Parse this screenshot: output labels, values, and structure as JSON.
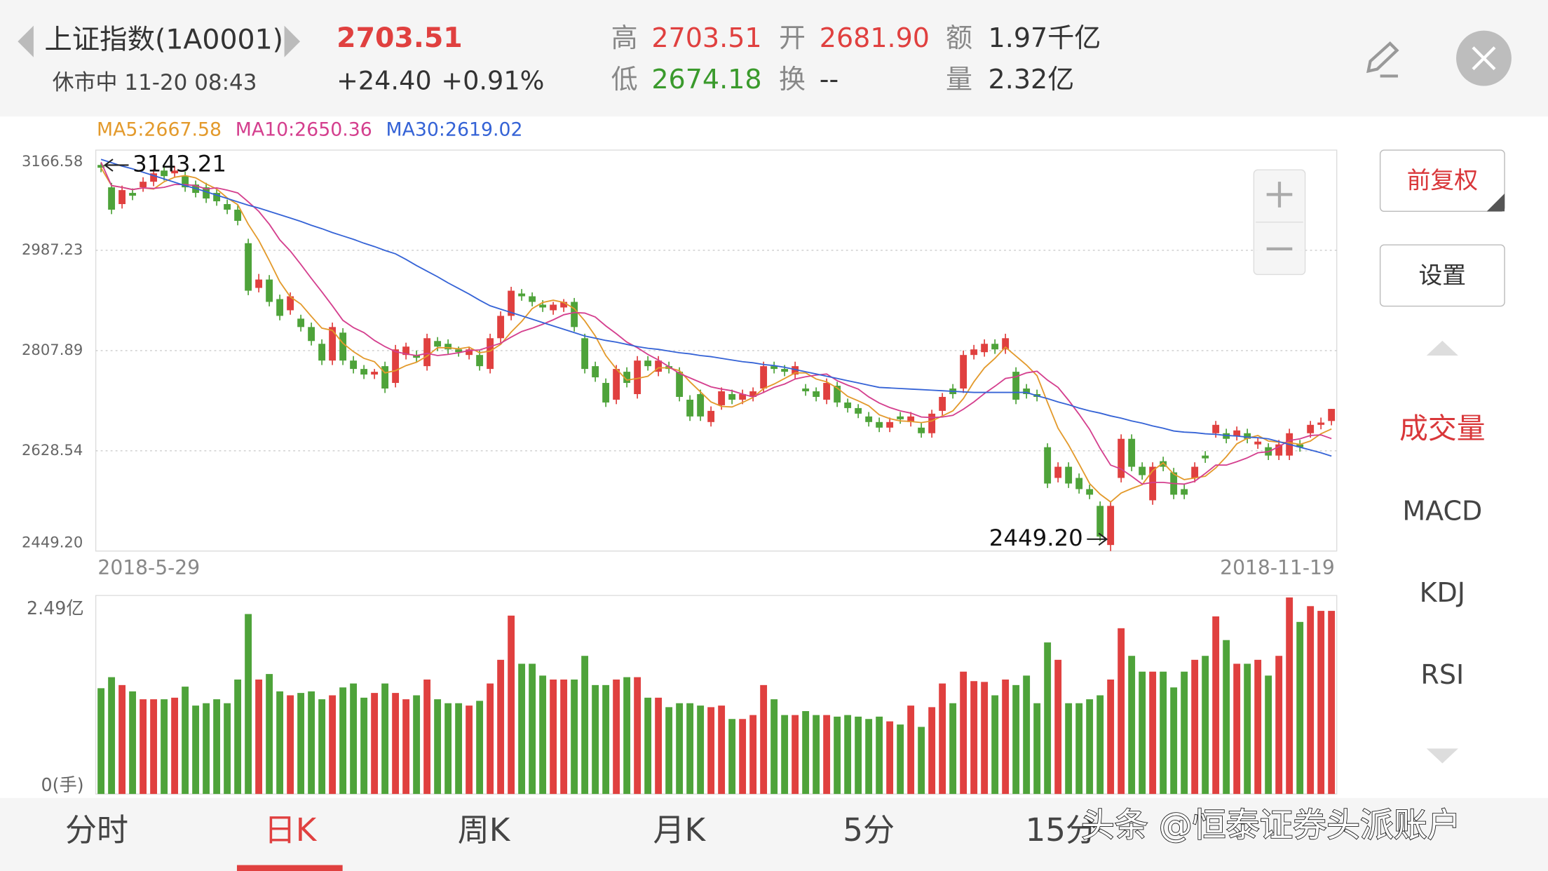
{
  "header": {
    "title": "上证指数(1A0001)",
    "status": "休市中 11-20 08:43",
    "price": "2703.51",
    "change": "+24.40",
    "change_pct": "+0.91%",
    "high_label": "高",
    "high": "2703.51",
    "open_label": "开",
    "open": "2681.90",
    "amount_label": "额",
    "amount": "1.97千亿",
    "low_label": "低",
    "low": "2674.18",
    "turnover_label": "换",
    "turnover": "--",
    "volume_label": "量",
    "volume": "2.32亿"
  },
  "sidebar": {
    "buttons": [
      "前复权",
      "设置"
    ],
    "indicators": [
      "成交量",
      "MACD",
      "KDJ",
      "RSI"
    ]
  },
  "tabs": {
    "items": [
      "分时",
      "日K",
      "周K",
      "月K",
      "5分",
      "15分"
    ]
  },
  "watermark": "头条 @恒泰证券头派账户",
  "chart_data": [
    {
      "type": "candlestick",
      "up_color": "#e0403f",
      "down_color": "#4ea33a",
      "grid": true,
      "categories": [
        "2018-5-29",
        null,
        null,
        null,
        null,
        null,
        null,
        null,
        null,
        null,
        null,
        null,
        null,
        null,
        null,
        null,
        null,
        null,
        null,
        null,
        null,
        null,
        null,
        null,
        null,
        null,
        null,
        null,
        null,
        null,
        null,
        null,
        null,
        null,
        null,
        null,
        null,
        null,
        null,
        null,
        null,
        null,
        null,
        null,
        null,
        null,
        null,
        null,
        null,
        null,
        null,
        null,
        null,
        null,
        null,
        null,
        null,
        null,
        null,
        null,
        null,
        null,
        null,
        null,
        null,
        null,
        null,
        null,
        null,
        null,
        null,
        null,
        null,
        null,
        null,
        null,
        null,
        null,
        null,
        null,
        null,
        null,
        null,
        null,
        null,
        null,
        null,
        null,
        null,
        null,
        null,
        null,
        null,
        null,
        null,
        null,
        null,
        null,
        null,
        null,
        null,
        null,
        null,
        null,
        null,
        null,
        null,
        null,
        null,
        null,
        null,
        null,
        null,
        null,
        null,
        null,
        null,
        "2018-11-19"
      ],
      "open": [
        3140,
        3100,
        3070,
        3090,
        3100,
        3110,
        3130,
        3125,
        3120,
        3105,
        3100,
        3090,
        3070,
        3060,
        3000,
        2920,
        2935,
        2900,
        2880,
        2865,
        2850,
        2820,
        2790,
        2840,
        2790,
        2775,
        2765,
        2780,
        2750,
        2800,
        2800,
        2780,
        2825,
        2820,
        2810,
        2800,
        2800,
        2775,
        2830,
        2870,
        2910,
        2905,
        2890,
        2880,
        2885,
        2895,
        2830,
        2780,
        2750,
        2720,
        2770,
        2730,
        2790,
        2770,
        2780,
        2770,
        2720,
        2730,
        2680,
        2710,
        2730,
        2720,
        2725,
        2740,
        2780,
        2775,
        2765,
        2740,
        2735,
        2720,
        2745,
        2715,
        2705,
        2690,
        2680,
        2670,
        2690,
        2680,
        2670,
        2660,
        2700,
        2740,
        2740,
        2800,
        2805,
        2820,
        2810,
        2770,
        2740,
        2730,
        2635,
        2580,
        2600,
        2580,
        2560,
        2530,
        2460,
        2580,
        2650,
        2600,
        2540,
        2610,
        2590,
        2560,
        2580,
        2620,
        2660,
        2660,
        2655,
        2660,
        2640,
        2635,
        2620,
        2620,
        2640,
        2660,
        2675,
        2681.9
      ],
      "high": [
        3143.21,
        3108,
        3103,
        3098,
        3118,
        3133,
        3138,
        3138,
        3128,
        3112,
        3108,
        3098,
        3078,
        3068,
        3008,
        2945,
        2943,
        2908,
        2912,
        2872,
        2858,
        2828,
        2858,
        2848,
        2798,
        2782,
        2775,
        2788,
        2818,
        2822,
        2808,
        2838,
        2832,
        2828,
        2815,
        2815,
        2808,
        2838,
        2878,
        2922,
        2918,
        2912,
        2898,
        2895,
        2900,
        2902,
        2838,
        2788,
        2758,
        2782,
        2778,
        2798,
        2798,
        2798,
        2788,
        2778,
        2728,
        2738,
        2708,
        2742,
        2738,
        2738,
        2742,
        2788,
        2788,
        2782,
        2788,
        2748,
        2742,
        2758,
        2752,
        2722,
        2712,
        2698,
        2688,
        2688,
        2698,
        2698,
        2678,
        2702,
        2732,
        2748,
        2808,
        2818,
        2828,
        2828,
        2838,
        2778,
        2748,
        2738,
        2642,
        2608,
        2608,
        2588,
        2568,
        2538,
        2538,
        2658,
        2658,
        2608,
        2608,
        2618,
        2598,
        2568,
        2608,
        2628,
        2682,
        2668,
        2672,
        2668,
        2652,
        2642,
        2648,
        2668,
        2648,
        2682,
        2688,
        2703.51
      ],
      "low": [
        3127,
        3052,
        3062,
        3077,
        3092,
        3102,
        3112,
        3117,
        3092,
        3082,
        3072,
        3067,
        3052,
        3032,
        2907,
        2912,
        2887,
        2862,
        2872,
        2842,
        2817,
        2782,
        2782,
        2782,
        2767,
        2757,
        2757,
        2732,
        2742,
        2792,
        2787,
        2772,
        2807,
        2802,
        2797,
        2792,
        2772,
        2767,
        2822,
        2862,
        2897,
        2887,
        2877,
        2872,
        2877,
        2842,
        2767,
        2752,
        2707,
        2712,
        2742,
        2722,
        2772,
        2762,
        2767,
        2717,
        2682,
        2682,
        2672,
        2702,
        2712,
        2712,
        2717,
        2732,
        2767,
        2762,
        2757,
        2727,
        2717,
        2712,
        2707,
        2697,
        2687,
        2672,
        2662,
        2662,
        2677,
        2672,
        2652,
        2652,
        2692,
        2722,
        2732,
        2792,
        2797,
        2802,
        2802,
        2712,
        2722,
        2717,
        2562,
        2572,
        2562,
        2552,
        2542,
        2467,
        2449.2,
        2572,
        2592,
        2577,
        2532,
        2592,
        2542,
        2542,
        2572,
        2607,
        2652,
        2642,
        2647,
        2642,
        2632,
        2612,
        2612,
        2612,
        2627,
        2652,
        2667,
        2674.18
      ],
      "close": [
        3135,
        3060,
        3095,
        3085,
        3110,
        3125,
        3120,
        3130,
        3100,
        3090,
        3080,
        3075,
        3060,
        3040,
        2915,
        2935,
        2895,
        2870,
        2905,
        2850,
        2825,
        2790,
        2850,
        2790,
        2775,
        2765,
        2770,
        2740,
        2810,
        2815,
        2795,
        2830,
        2815,
        2810,
        2805,
        2810,
        2780,
        2830,
        2870,
        2915,
        2905,
        2895,
        2885,
        2890,
        2895,
        2850,
        2775,
        2760,
        2715,
        2775,
        2750,
        2790,
        2780,
        2790,
        2775,
        2725,
        2690,
        2690,
        2700,
        2735,
        2720,
        2730,
        2735,
        2780,
        2775,
        2770,
        2780,
        2735,
        2725,
        2750,
        2715,
        2705,
        2695,
        2680,
        2670,
        2680,
        2685,
        2690,
        2660,
        2695,
        2725,
        2730,
        2800,
        2810,
        2820,
        2810,
        2830,
        2720,
        2730,
        2725,
        2570,
        2600,
        2570,
        2560,
        2550,
        2475,
        2530,
        2650,
        2600,
        2585,
        2600,
        2600,
        2550,
        2550,
        2600,
        2615,
        2675,
        2650,
        2665,
        2650,
        2645,
        2620,
        2640,
        2660,
        2635,
        2675,
        2679.11,
        2703.51
      ],
      "lines": [
        {
          "label": "MA5:2667.58",
          "color": "#e39a2c",
          "values": [
            3135,
            3103,
            3100,
            3096,
            3099,
            3097,
            3110,
            3118,
            3121,
            3117,
            3106,
            3097,
            3081,
            3069,
            3034,
            3005,
            2969,
            2931,
            2904,
            2891,
            2869,
            2848,
            2844,
            2821,
            2806,
            2794,
            2788,
            2768,
            2772,
            2781,
            2787,
            2798,
            2813,
            2813,
            2811,
            2814,
            2804,
            2807,
            2819,
            2841,
            2860,
            2883,
            2894,
            2898,
            2894,
            2883,
            2861,
            2834,
            2799,
            2775,
            2755,
            2758,
            2762,
            2777,
            2777,
            2772,
            2752,
            2734,
            2716,
            2708,
            2707,
            2715,
            2724,
            2740,
            2748,
            2758,
            2768,
            2768,
            2757,
            2752,
            2741,
            2726,
            2718,
            2709,
            2693,
            2686,
            2682,
            2681,
            2679,
            2682,
            2691,
            2700,
            2722,
            2752,
            2777,
            2794,
            2814,
            2798,
            2782,
            2763,
            2715,
            2669,
            2639,
            2605,
            2570,
            2551,
            2537,
            2553,
            2561,
            2568,
            2593,
            2607,
            2587,
            2577,
            2580,
            2583,
            2598,
            2618,
            2641,
            2651,
            2656,
            2646,
            2644,
            2643,
            2640,
            2646,
            2659,
            2667.58
          ]
        },
        {
          "label": "MA10:2650.36",
          "color": "#d43f8e",
          "values": [
            3145,
            3103,
            3100,
            3096,
            3099,
            3098,
            3100,
            3105,
            3105,
            3103,
            3097,
            3099,
            3095,
            3090,
            3074,
            3057,
            3034,
            3006,
            2986,
            2962,
            2937,
            2913,
            2888,
            2862,
            2849,
            2840,
            2826,
            2815,
            2806,
            2802,
            2799,
            2803,
            2799,
            2801,
            2804,
            2808,
            2809,
            2815,
            2821,
            2832,
            2842,
            2848,
            2855,
            2863,
            2872,
            2876,
            2875,
            2868,
            2852,
            2838,
            2823,
            2813,
            2801,
            2791,
            2779,
            2767,
            2759,
            2751,
            2743,
            2739,
            2736,
            2730,
            2725,
            2733,
            2742,
            2748,
            2757,
            2761,
            2764,
            2766,
            2754,
            2746,
            2739,
            2725,
            2714,
            2706,
            2700,
            2696,
            2689,
            2688,
            2689,
            2692,
            2703,
            2716,
            2731,
            2744,
            2758,
            2761,
            2768,
            2771,
            2755,
            2742,
            2719,
            2694,
            2667,
            2633,
            2603,
            2596,
            2583,
            2569,
            2572,
            2572,
            2570,
            2569,
            2574,
            2588,
            2603,
            2603,
            2609,
            2616,
            2625,
            2627,
            2636,
            2647,
            2650,
            2656,
            2657,
            2650.36
          ]
        },
        {
          "label": "MA30:2619.02",
          "color": "#3563d6",
          "values": [
            3150,
            3144,
            3138,
            3133,
            3127,
            3121,
            3115,
            3109,
            3103,
            3098,
            3092,
            3086,
            3080,
            3074,
            3068,
            3063,
            3057,
            3051,
            3045,
            3039,
            3032,
            3026,
            3019,
            3013,
            3007,
            3000,
            2994,
            2987,
            2981,
            2971,
            2960,
            2950,
            2940,
            2929,
            2919,
            2909,
            2898,
            2888,
            2882,
            2876,
            2870,
            2864,
            2858,
            2852,
            2846,
            2840,
            2834,
            2830,
            2826,
            2823,
            2819,
            2815,
            2812,
            2810,
            2807,
            2804,
            2802,
            2799,
            2797,
            2794,
            2791,
            2788,
            2786,
            2783,
            2781,
            2778,
            2774,
            2770,
            2766,
            2762,
            2758,
            2754,
            2750,
            2746,
            2742,
            2741,
            2740,
            2739,
            2738,
            2737,
            2736,
            2735,
            2734,
            2733,
            2733,
            2733,
            2733,
            2733,
            2733,
            2727,
            2722,
            2716,
            2711,
            2705,
            2700,
            2696,
            2691,
            2687,
            2682,
            2678,
            2673,
            2669,
            2664,
            2662,
            2661,
            2659,
            2658,
            2656,
            2655,
            2653,
            2652,
            2650,
            2645,
            2640,
            2635,
            2630,
            2625,
            2619.02
          ]
        }
      ],
      "ylim": [
        2449.2,
        3166.58
      ],
      "yticks": [
        3166.58,
        2987.23,
        2807.89,
        2628.54,
        {
          "value": 2449.2,
          "label": "2449.20"
        }
      ],
      "annotations": [
        {
          "value": 3143.21,
          "text": "3143.21"
        },
        {
          "value": 2449.2,
          "text": "2449.20"
        }
      ]
    },
    {
      "type": "bar",
      "up_color": "#e0403f",
      "down_color": "#4ea33a",
      "values": [
        1.34,
        1.48,
        1.38,
        1.3,
        1.2,
        1.2,
        1.2,
        1.22,
        1.36,
        1.12,
        1.15,
        1.2,
        1.15,
        1.45,
        2.28,
        1.45,
        1.52,
        1.3,
        1.25,
        1.28,
        1.3,
        1.2,
        1.25,
        1.35,
        1.4,
        1.22,
        1.28,
        1.4,
        1.28,
        1.2,
        1.25,
        1.45,
        1.2,
        1.15,
        1.15,
        1.12,
        1.18,
        1.4,
        1.7,
        2.26,
        1.65,
        1.65,
        1.5,
        1.45,
        1.45,
        1.45,
        1.75,
        1.38,
        1.38,
        1.45,
        1.48,
        1.48,
        1.22,
        1.22,
        1.1,
        1.15,
        1.15,
        1.12,
        1.1,
        1.12,
        0.95,
        0.95,
        1.0,
        1.38,
        1.2,
        1.0,
        1.0,
        1.05,
        1.0,
        1.0,
        0.98,
        1.0,
        0.98,
        0.95,
        0.98,
        0.92,
        0.88,
        1.12,
        0.85,
        1.1,
        1.4,
        1.15,
        1.55,
        1.43,
        1.42,
        1.25,
        1.45,
        1.38,
        1.5,
        1.15,
        1.92,
        1.7,
        1.15,
        1.15,
        1.2,
        1.25,
        1.45,
        2.1,
        1.75,
        1.55,
        1.55,
        1.55,
        1.35,
        1.55,
        1.7,
        1.75,
        2.25,
        1.95,
        1.65,
        1.65,
        1.7,
        1.5,
        1.75,
        2.49,
        2.18,
        2.38,
        2.32,
        2.32
      ],
      "ylim": [
        0,
        2.49
      ],
      "yticks": [
        {
          "value": 2.49,
          "label": "2.49亿"
        },
        {
          "value": 0,
          "label": "0(手)"
        }
      ]
    }
  ]
}
